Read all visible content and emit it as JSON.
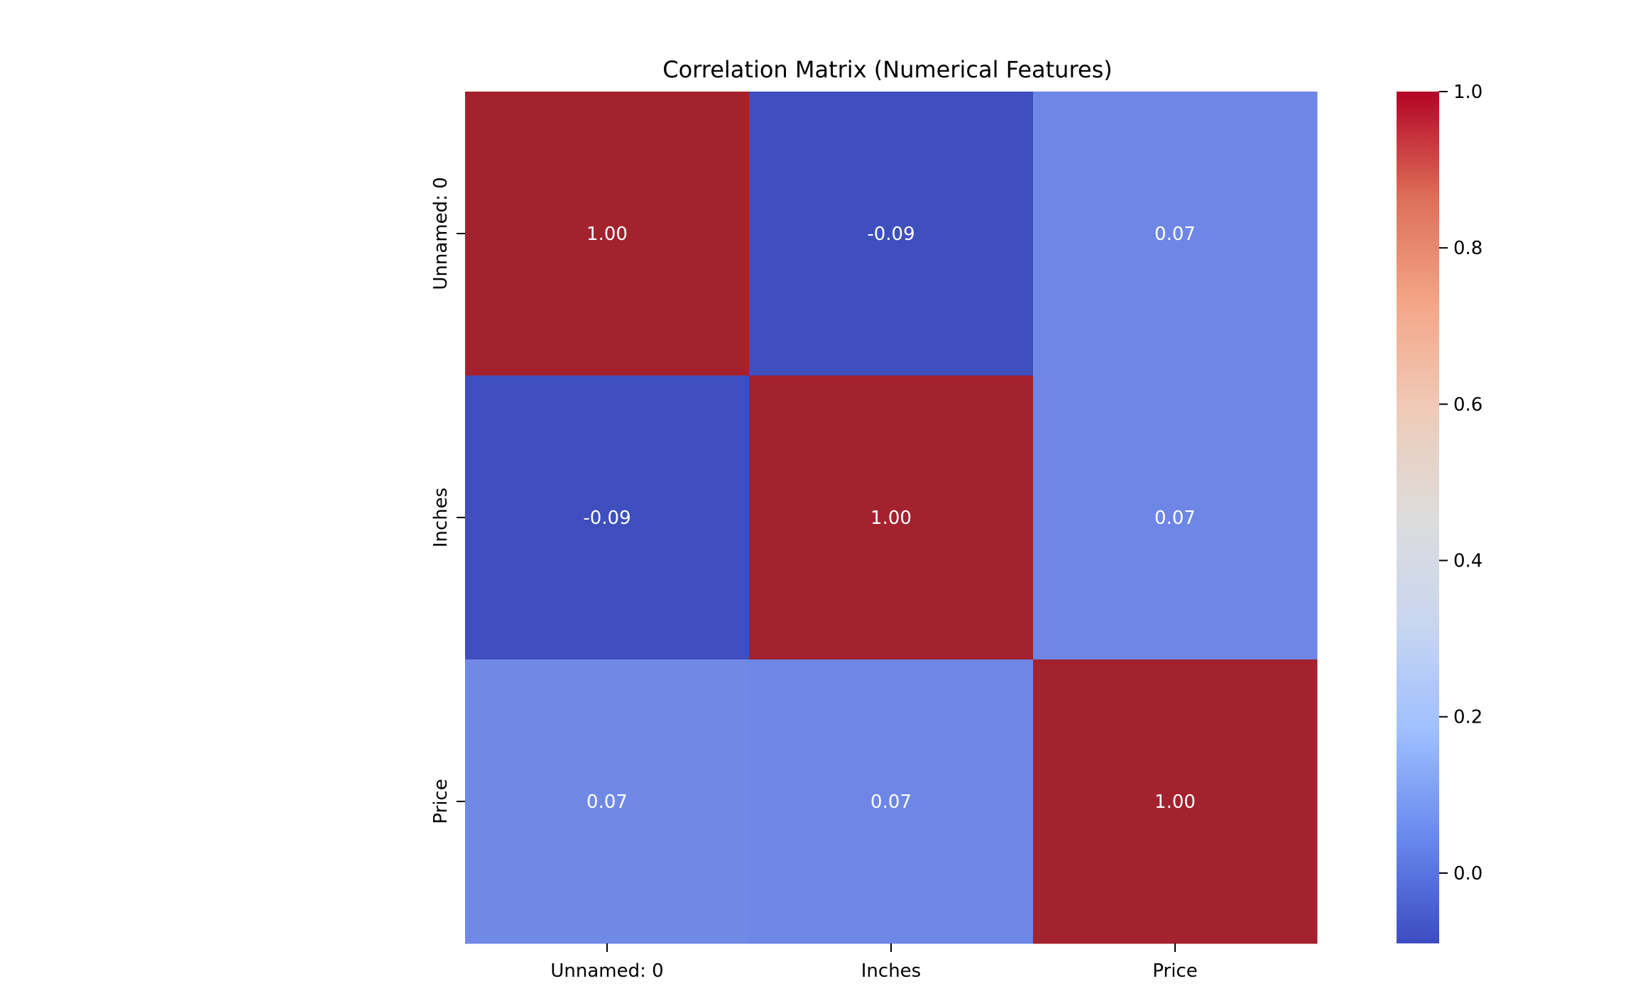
{
  "chart_data": {
    "type": "heatmap",
    "title": "Correlation Matrix (Numerical Features)",
    "x_labels": [
      "Unnamed: 0",
      "Inches",
      "Price"
    ],
    "y_labels": [
      "Unnamed: 0",
      "Inches",
      "Price"
    ],
    "values": [
      [
        1.0,
        -0.09,
        0.07
      ],
      [
        -0.09,
        1.0,
        0.07
      ],
      [
        0.07,
        0.07,
        1.0
      ]
    ],
    "value_format": "0.00",
    "colormap": "coolwarm",
    "colorbar": {
      "range": [
        -0.09,
        1.0
      ],
      "ticks": [
        0.0,
        0.2,
        0.4,
        0.6,
        0.8,
        1.0
      ],
      "tick_labels": [
        "0.0",
        "0.2",
        "0.4",
        "0.6",
        "0.8",
        "1.0"
      ],
      "placement": "right"
    },
    "cell_colors": [
      [
        "#a3222e",
        "#3f4fbe",
        "#6e86e5"
      ],
      [
        "#3f4fbe",
        "#a3222e",
        "#6e86e5"
      ],
      [
        "#7089e6",
        "#6e86e5",
        "#a3222e"
      ]
    ],
    "colorbar_stops": [
      "#3b4cc0",
      "#6889ee",
      "#9fbfff",
      "#c8d6f1",
      "#dddcdc",
      "#efcbb8",
      "#f5a688",
      "#dd6f58",
      "#b40426"
    ]
  }
}
